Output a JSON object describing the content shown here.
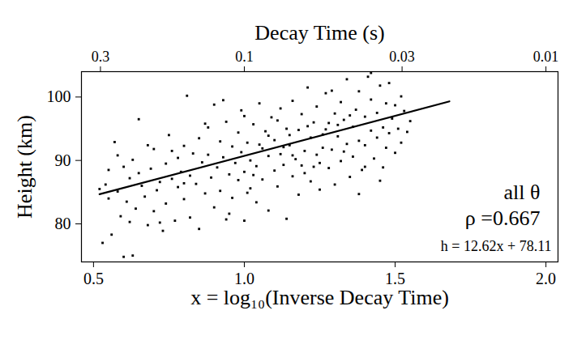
{
  "chart_data": {
    "type": "scatter",
    "xlabel": "x = log₁₀(Inverse Decay Time)",
    "ylabel": "Height (km)",
    "x2label": "Decay Time (s)",
    "xlim": [
      0.46,
      2.04
    ],
    "ylim": [
      74,
      104
    ],
    "xticks": [
      {
        "value": 0.5,
        "label": "0.5"
      },
      {
        "value": 1,
        "label": "1.0"
      },
      {
        "value": 1.5,
        "label": "1.5"
      },
      {
        "value": 2,
        "label": "2.0"
      }
    ],
    "x2ticks": [
      {
        "value": 0.523,
        "label": "0.3"
      },
      {
        "value": 1,
        "label": "0.1"
      },
      {
        "value": 1.523,
        "label": "0.03"
      },
      {
        "value": 2,
        "label": "0.01"
      }
    ],
    "yticks": [
      80,
      90,
      100
    ],
    "grid": false,
    "color": "#000000",
    "marker": "square",
    "annotations": [
      "all θ",
      "ρ =0.667",
      "h = 12.62x + 78.11"
    ],
    "fit": {
      "type": "line",
      "color": "#000000",
      "line_style": "solid",
      "x": [
        0.52,
        1.68
      ],
      "values": [
        84.67,
        99.31
      ]
    },
    "x": [
      0.52,
      0.53,
      0.54,
      0.55,
      0.55,
      0.56,
      0.57,
      0.58,
      0.59,
      0.6,
      0.6,
      0.61,
      0.62,
      0.63,
      0.63,
      0.64,
      0.65,
      0.66,
      0.67,
      0.68,
      0.69,
      0.7,
      0.7,
      0.71,
      0.72,
      0.73,
      0.74,
      0.74,
      0.75,
      0.76,
      0.77,
      0.78,
      0.78,
      0.79,
      0.8,
      0.8,
      0.81,
      0.82,
      0.82,
      0.83,
      0.84,
      0.85,
      0.85,
      0.86,
      0.87,
      0.88,
      0.88,
      0.89,
      0.9,
      0.9,
      0.91,
      0.92,
      0.92,
      0.93,
      0.94,
      0.94,
      0.95,
      0.96,
      0.96,
      0.97,
      0.98,
      0.98,
      0.99,
      1.0,
      1.0,
      1.0,
      1.01,
      1.02,
      1.02,
      1.03,
      1.04,
      1.04,
      1.05,
      1.06,
      1.06,
      1.07,
      1.08,
      1.08,
      1.09,
      1.1,
      1.1,
      1.11,
      1.12,
      1.12,
      1.13,
      1.14,
      1.14,
      1.15,
      1.16,
      1.16,
      1.17,
      1.18,
      1.18,
      1.19,
      1.2,
      1.2,
      1.21,
      1.22,
      1.22,
      1.23,
      1.24,
      1.24,
      1.25,
      1.26,
      1.26,
      1.27,
      1.28,
      1.28,
      1.29,
      1.3,
      1.3,
      1.31,
      1.32,
      1.32,
      1.33,
      1.34,
      1.34,
      1.35,
      1.36,
      1.36,
      1.37,
      1.38,
      1.38,
      1.39,
      1.4,
      1.4,
      1.41,
      1.42,
      1.42,
      1.43,
      1.44,
      1.44,
      1.45,
      1.46,
      1.46,
      1.47,
      1.48,
      1.48,
      1.49,
      1.5,
      1.5,
      1.51,
      1.52,
      1.52,
      1.53,
      1.54,
      1.55,
      1.42,
      1.38,
      1.45,
      0.95,
      1.03,
      1.11,
      1.19,
      1.27,
      1.05,
      0.87,
      1.15,
      1.25,
      1.33,
      0.58,
      0.65,
      0.72,
      0.8,
      0.93,
      1.08,
      1.21,
      1.35,
      1.47,
      1.29,
      1.01,
      1.13,
      1.23,
      1.31,
      1.4,
      1.16,
      0.99,
      0.76,
      0.68,
      0.62
    ],
    "values": [
      85.5,
      77.0,
      86.2,
      88.5,
      84.0,
      78.3,
      92.9,
      85.1,
      81.2,
      89.0,
      74.8,
      83.5,
      87.2,
      75.0,
      90.1,
      82.4,
      96.5,
      86.0,
      84.3,
      79.8,
      88.7,
      82.0,
      91.8,
      85.3,
      86.6,
      78.9,
      89.5,
      83.2,
      94.0,
      87.1,
      80.5,
      90.4,
      85.8,
      88.2,
      92.3,
      83.9,
      100.2,
      87.6,
      81.0,
      91.1,
      86.3,
      93.5,
      79.2,
      89.7,
      84.8,
      90.9,
      95.2,
      87.3,
      82.6,
      98.8,
      88.9,
      85.2,
      93.0,
      90.5,
      80.7,
      96.1,
      87.8,
      92.2,
      84.1,
      89.6,
      94.4,
      86.9,
      91.3,
      88.2,
      80.5,
      97.0,
      92.8,
      85.6,
      90.0,
      95.7,
      83.4,
      89.1,
      99.0,
      91.9,
      87.0,
      94.6,
      82.1,
      90.7,
      96.8,
      88.4,
      93.2,
      85.9,
      91.0,
      98.2,
      89.3,
      95.0,
      80.8,
      92.4,
      87.5,
      99.4,
      90.2,
      94.8,
      84.6,
      97.3,
      91.5,
      88.0,
      101.5,
      93.6,
      86.7,
      96.0,
      90.9,
      98.5,
      85.4,
      94.1,
      92.0,
      100.6,
      88.8,
      95.9,
      91.7,
      97.4,
      86.2,
      93.8,
      99.2,
      89.9,
      96.4,
      92.6,
      102.8,
      87.4,
      95.3,
      90.6,
      98.0,
      93.1,
      100.9,
      88.5,
      96.9,
      92.4,
      103.2,
      94.7,
      99.6,
      90.3,
      97.5,
      93.6,
      101.8,
      95.2,
      88.9,
      99.0,
      94.3,
      102.2,
      96.6,
      91.2,
      98.7,
      95.0,
      100.1,
      92.8,
      97.8,
      94.5,
      96.2,
      103.8,
      84.7,
      86.8,
      81.6,
      87.7,
      96.3,
      89.2,
      94.9,
      92.5,
      95.8,
      94.0,
      89.6,
      91.4,
      90.8,
      88.0,
      80.2,
      86.4,
      99.5,
      93.9,
      95.4,
      97.1,
      92.0,
      101.0,
      84.9,
      92.1,
      89.0,
      95.6,
      89.0,
      90.8,
      97.9,
      91.5,
      92.4,
      80.3
    ]
  }
}
